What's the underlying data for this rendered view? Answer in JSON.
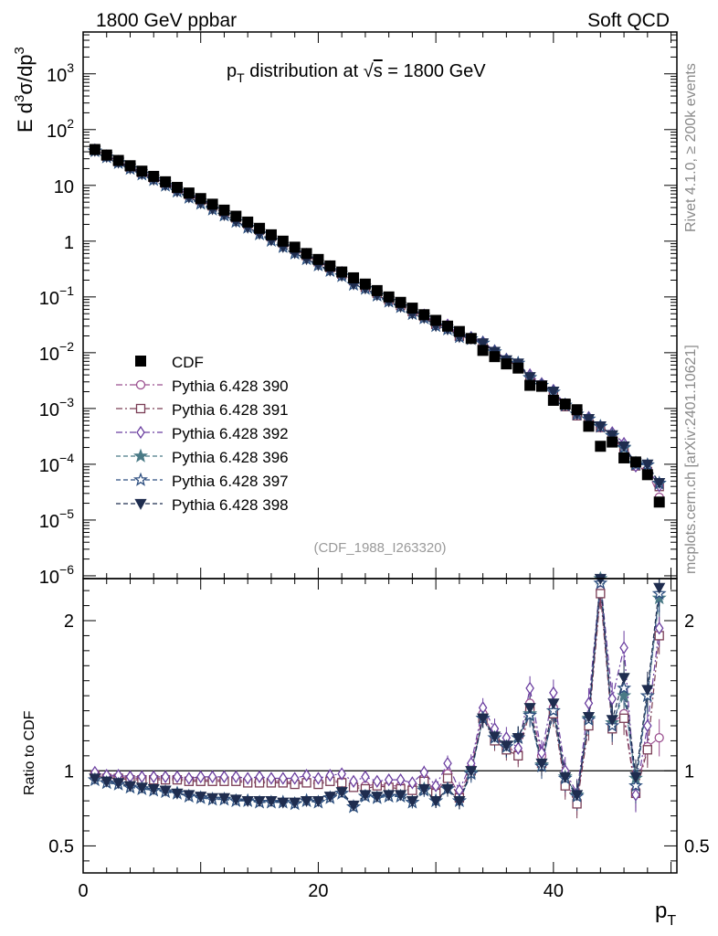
{
  "header": {
    "left": "1800 GeV ppbar",
    "right": "Soft QCD"
  },
  "side_labels": {
    "top": "Rivet 4.1.0, ≥ 200k events",
    "bottom": "mcplots.cern.ch [arXiv:2401.10621]"
  },
  "chart_data": {
    "type": "scatter",
    "title": "p_T distribution at √s = 1800 GeV",
    "title_parts": {
      "prefix": "p",
      "sub": "T",
      "middle": " distribution at ",
      "sqrt": "√",
      "s": "s",
      "suffix": " = 1800 GeV"
    },
    "analysis": "(CDF_1988_I263320)",
    "ylabel": {
      "prefix": "E  d",
      "sup1": "3",
      "mid": "σ/dp",
      "sup2": "3"
    },
    "ratio_ylabel": "Ratio to CDF",
    "xlabel": {
      "main": "p",
      "sub": "T"
    },
    "xlim": [
      0,
      50.5
    ],
    "ylim_log10": [
      -6.05,
      3.75
    ],
    "ratio_ylim": [
      0.32,
      2.28
    ],
    "x_ticks": [
      "0",
      "20",
      "40"
    ],
    "y_ticks_main": [
      {
        "v": 3,
        "base": "10",
        "exp": "3"
      },
      {
        "v": 2,
        "base": "10",
        "exp": "2"
      },
      {
        "v": 1,
        "base": "10",
        "exp": ""
      },
      {
        "v": 0,
        "base": "1",
        "exp": ""
      },
      {
        "v": -1,
        "base": "10",
        "exp": "−1"
      },
      {
        "v": -2,
        "base": "10",
        "exp": "−2"
      },
      {
        "v": -3,
        "base": "10",
        "exp": "−3"
      },
      {
        "v": -4,
        "base": "10",
        "exp": "−4"
      },
      {
        "v": -5,
        "base": "10",
        "exp": "−5"
      },
      {
        "v": -6,
        "base": "10",
        "exp": "−6"
      }
    ],
    "y_ticks_ratio": [
      {
        "v": 0.5,
        "label": "0.5"
      },
      {
        "v": 1,
        "label": "1"
      },
      {
        "v": 2,
        "label": "2"
      }
    ],
    "x": [
      1,
      2,
      3,
      4,
      5,
      6,
      7,
      8,
      9,
      10,
      11,
      12,
      13,
      14,
      15,
      16,
      17,
      18,
      19,
      20,
      21,
      22,
      23,
      24,
      25,
      26,
      27,
      28,
      29,
      30,
      31,
      32,
      33,
      34,
      35,
      36,
      37,
      38,
      39,
      40,
      41,
      42,
      43,
      44,
      45,
      46,
      47,
      48,
      49
    ],
    "data_name": "CDF",
    "data_values": [
      44,
      35,
      28,
      22.5,
      18,
      14.5,
      11.6,
      9.2,
      7.3,
      5.8,
      4.6,
      3.6,
      2.8,
      2.2,
      1.7,
      1.3,
      1.0,
      0.78,
      0.6,
      0.47,
      0.36,
      0.28,
      0.22,
      0.17,
      0.13,
      0.1,
      0.08,
      0.063,
      0.048,
      0.038,
      0.03,
      0.024,
      0.018,
      0.011,
      0.0085,
      0.0063,
      0.0053,
      0.0026,
      0.0025,
      0.0014,
      0.0012,
      0.00095,
      0.00048,
      0.00021,
      0.00025,
      0.00013,
      0.00011,
      6.5e-05,
      2.1e-05
    ],
    "series": [
      {
        "name": "Pythia 6.428 390",
        "color": "#9b4f8f",
        "marker": "circle",
        "fill": false,
        "dash": "7,3,2,3",
        "ratio": [
          0.98,
          0.96,
          0.96,
          0.95,
          0.95,
          0.95,
          0.95,
          0.95,
          0.94,
          0.94,
          0.94,
          0.94,
          0.94,
          0.93,
          0.93,
          0.93,
          0.93,
          0.92,
          0.93,
          0.92,
          0.94,
          0.93,
          0.9,
          0.9,
          0.91,
          0.9,
          0.9,
          0.89,
          0.95,
          0.86,
          0.98,
          0.84,
          1.02,
          1.38,
          1.22,
          1.16,
          1.12,
          1.45,
          1.1,
          1.42,
          0.92,
          0.8,
          1.34,
          2.2,
          1.32,
          1.38,
          0.87,
          1.16,
          1.22
        ]
      },
      {
        "name": "Pythia 6.428 391",
        "color": "#7a3d55",
        "marker": "square",
        "fill": false,
        "dash": "7,3,2,3",
        "ratio": [
          0.97,
          0.95,
          0.95,
          0.94,
          0.94,
          0.94,
          0.94,
          0.94,
          0.93,
          0.93,
          0.93,
          0.93,
          0.93,
          0.92,
          0.92,
          0.92,
          0.92,
          0.91,
          0.92,
          0.91,
          0.93,
          0.92,
          0.89,
          0.88,
          0.9,
          0.89,
          0.88,
          0.87,
          0.93,
          0.85,
          0.95,
          0.82,
          1.0,
          1.35,
          1.2,
          1.14,
          1.1,
          1.4,
          1.05,
          1.38,
          0.9,
          0.78,
          1.3,
          2.18,
          1.28,
          1.35,
          0.85,
          1.14,
          1.9
        ]
      },
      {
        "name": "Pythia 6.428 392",
        "color": "#6b3fa0",
        "marker": "diamond",
        "fill": false,
        "dash": "7,3,2,3",
        "ratio": [
          0.99,
          0.97,
          0.97,
          0.96,
          0.96,
          0.96,
          0.96,
          0.96,
          0.95,
          0.96,
          0.96,
          0.96,
          0.96,
          0.95,
          0.96,
          0.95,
          0.95,
          0.95,
          0.97,
          0.95,
          0.97,
          0.98,
          0.93,
          0.96,
          0.93,
          0.94,
          0.94,
          0.92,
          0.99,
          0.9,
          1.05,
          0.87,
          1.05,
          1.42,
          1.28,
          1.22,
          1.15,
          1.55,
          1.12,
          1.52,
          1.0,
          0.85,
          1.45,
          2.3,
          1.48,
          1.82,
          0.84,
          1.3,
          1.95
        ]
      },
      {
        "name": "Pythia 6.428 396",
        "color": "#4a7a86",
        "marker": "star",
        "fill": true,
        "dash": "5,3",
        "ratio": [
          0.94,
          0.92,
          0.91,
          0.89,
          0.88,
          0.87,
          0.86,
          0.85,
          0.83,
          0.82,
          0.81,
          0.81,
          0.8,
          0.8,
          0.79,
          0.79,
          0.79,
          0.78,
          0.8,
          0.79,
          0.82,
          0.85,
          0.76,
          0.83,
          0.82,
          0.83,
          0.83,
          0.79,
          0.88,
          0.8,
          0.88,
          0.8,
          0.99,
          1.35,
          1.22,
          1.16,
          1.22,
          1.38,
          1.04,
          1.4,
          0.96,
          0.84,
          1.35,
          2.28,
          1.32,
          1.5,
          0.95,
          1.5,
          2.15
        ]
      },
      {
        "name": "Pythia 6.428 397",
        "color": "#2e4f80",
        "marker": "star",
        "fill": false,
        "dash": "5,3",
        "ratio": [
          0.94,
          0.92,
          0.91,
          0.89,
          0.88,
          0.87,
          0.86,
          0.85,
          0.83,
          0.82,
          0.81,
          0.81,
          0.8,
          0.8,
          0.79,
          0.79,
          0.79,
          0.78,
          0.8,
          0.79,
          0.82,
          0.85,
          0.76,
          0.83,
          0.82,
          0.83,
          0.83,
          0.79,
          0.87,
          0.8,
          0.88,
          0.8,
          0.98,
          1.35,
          1.22,
          1.16,
          1.22,
          1.37,
          1.03,
          1.4,
          0.95,
          0.83,
          1.34,
          2.25,
          1.3,
          1.55,
          0.9,
          1.5,
          2.18
        ]
      },
      {
        "name": "Pythia 6.428 398",
        "color": "#1f2d4f",
        "marker": "triangle-down",
        "fill": true,
        "dash": "5,3",
        "ratio": [
          0.95,
          0.93,
          0.92,
          0.9,
          0.89,
          0.88,
          0.87,
          0.85,
          0.84,
          0.83,
          0.82,
          0.82,
          0.81,
          0.8,
          0.8,
          0.8,
          0.79,
          0.79,
          0.8,
          0.8,
          0.83,
          0.86,
          0.77,
          0.84,
          0.83,
          0.84,
          0.84,
          0.8,
          0.88,
          0.8,
          0.88,
          0.8,
          1.0,
          1.35,
          1.23,
          1.17,
          1.22,
          1.42,
          1.05,
          1.45,
          0.96,
          0.84,
          1.36,
          2.3,
          1.34,
          1.62,
          0.96,
          1.54,
          2.22
        ]
      }
    ]
  }
}
